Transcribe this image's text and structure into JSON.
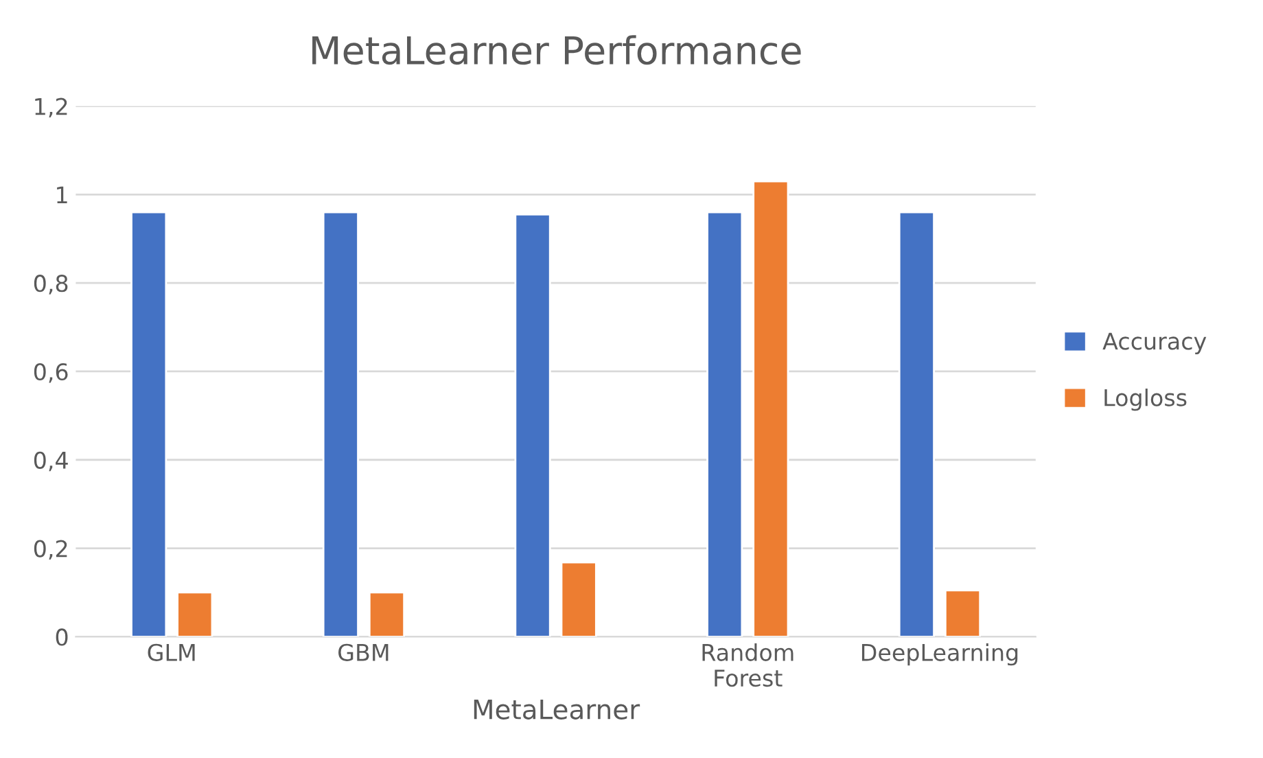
{
  "chart_data": {
    "type": "bar",
    "title": "MetaLearner Performance",
    "xlabel": "MetaLearner",
    "categories": [
      "GLM",
      "GBM",
      null,
      "Random\nForest",
      "DeepLearning"
    ],
    "series": [
      {
        "name": "Accuracy",
        "color": "#4472c4",
        "values": [
          0.96,
          0.96,
          0.955,
          0.96,
          0.96
        ]
      },
      {
        "name": "Logloss",
        "color": "#ed7d31",
        "values": [
          0.1,
          0.1,
          0.168,
          1.03,
          0.105
        ]
      }
    ],
    "ylim": [
      0,
      1.2
    ],
    "yticks": [
      0,
      {
        "value": 0.2,
        "label": "0,2"
      },
      {
        "value": 0.4,
        "label": "0,4"
      },
      {
        "value": 0.6,
        "label": "0,6"
      },
      {
        "value": 0.8,
        "label": "0,8"
      },
      1,
      {
        "value": 1.2,
        "label": "1,2"
      }
    ],
    "grid": "y",
    "legend": "right"
  }
}
